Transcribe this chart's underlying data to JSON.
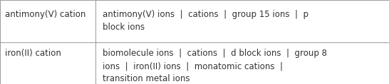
{
  "rows": [
    {
      "left": "antimony(V) cation",
      "right": "antimony(V) ions  |  cations  |  group 15 ions  |  p\nblock ions"
    },
    {
      "left": "iron(II) cation",
      "right": "biomolecule ions  |  cations  |  d block ions  |  group 8\nions  |  iron(II) ions  |  monatomic cations  |\ntransition metal ions"
    }
  ],
  "background_color": "#ffffff",
  "border_color": "#999999",
  "text_color": "#333333",
  "font_size": 8.5,
  "col_split": 0.245,
  "fig_width": 5.46,
  "fig_height": 1.19,
  "dpi": 100
}
